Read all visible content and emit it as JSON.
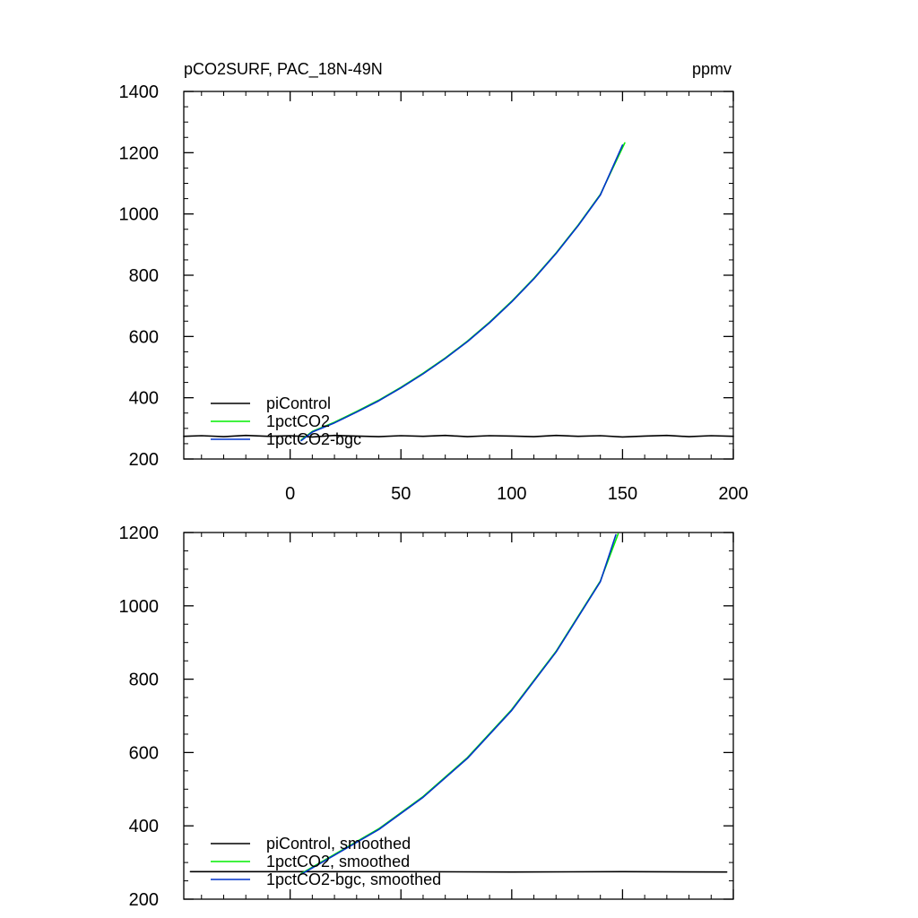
{
  "chart_data": [
    {
      "type": "line",
      "title": "pCO2SURF, PAC_18N-49N",
      "units": "ppmv",
      "xlim": [
        -48,
        200
      ],
      "ylim": [
        200,
        1400
      ],
      "xticks": [
        0,
        50,
        100,
        150,
        200
      ],
      "yticks": [
        200,
        400,
        600,
        800,
        1000,
        1200,
        1400
      ],
      "show_x_tick_labels": true,
      "legend_position": "bottom-left",
      "grid": false,
      "series": [
        {
          "name": "piControl",
          "color": "#000000",
          "x": [
            -48,
            -40,
            -30,
            -20,
            -10,
            0,
            10,
            20,
            30,
            40,
            50,
            60,
            70,
            80,
            90,
            100,
            110,
            120,
            130,
            140,
            150,
            160,
            170,
            180,
            190,
            200
          ],
          "y": [
            274,
            276,
            273,
            277,
            274,
            276,
            272,
            277,
            275,
            273,
            276,
            274,
            277,
            273,
            276,
            275,
            273,
            277,
            274,
            276,
            272,
            275,
            277,
            273,
            276,
            274
          ]
        },
        {
          "name": "1pctCO2",
          "color": "#00ee00",
          "x": [
            5,
            10,
            20,
            30,
            40,
            50,
            60,
            70,
            80,
            90,
            100,
            110,
            120,
            130,
            140,
            151
          ],
          "y": [
            262,
            290,
            320,
            355,
            392,
            434,
            480,
            530,
            585,
            647,
            715,
            790,
            873,
            964,
            1064,
            1232
          ]
        },
        {
          "name": "1pctCO2-bgc",
          "color": "#0033cc",
          "x": [
            5,
            10,
            20,
            30,
            40,
            50,
            60,
            70,
            80,
            90,
            100,
            110,
            120,
            130,
            140,
            150
          ],
          "y": [
            260,
            288,
            318,
            353,
            390,
            432,
            478,
            528,
            583,
            645,
            713,
            788,
            871,
            962,
            1062,
            1225
          ]
        }
      ]
    },
    {
      "type": "line",
      "xlim": [
        -48,
        200
      ],
      "ylim": [
        200,
        1200
      ],
      "xticks": [
        0,
        50,
        100,
        150,
        200
      ],
      "yticks": [
        200,
        400,
        600,
        800,
        1000,
        1200
      ],
      "show_x_tick_labels": false,
      "legend_position": "bottom-left",
      "grid": false,
      "series": [
        {
          "name": "piControl, smoothed",
          "color": "#000000",
          "x": [
            -45,
            0,
            50,
            100,
            150,
            197
          ],
          "y": [
            275,
            275,
            275,
            274,
            275,
            274
          ]
        },
        {
          "name": "1pctCO2, smoothed",
          "color": "#00ee00",
          "x": [
            5,
            20,
            40,
            60,
            80,
            100,
            120,
            140,
            148
          ],
          "y": [
            270,
            322,
            392,
            480,
            586,
            717,
            876,
            1068,
            1196
          ]
        },
        {
          "name": "1pctCO2-bgc, smoothed",
          "color": "#0033cc",
          "x": [
            5,
            20,
            40,
            60,
            80,
            100,
            120,
            140,
            147
          ],
          "y": [
            268,
            320,
            390,
            478,
            584,
            715,
            874,
            1066,
            1194
          ]
        }
      ]
    }
  ]
}
